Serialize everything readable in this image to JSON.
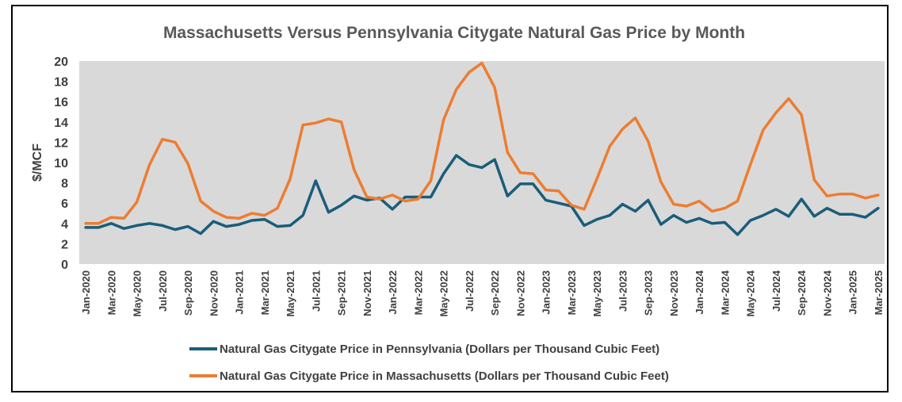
{
  "chart_data": {
    "type": "line",
    "title": "Massachusetts Versus Pennsylvania Citygate Natural Gas Price by Month",
    "xlabel": "",
    "ylabel": "$/MCF",
    "ylim": [
      0,
      20
    ],
    "yticks": [
      0,
      2,
      4,
      6,
      8,
      10,
      12,
      14,
      16,
      18,
      20
    ],
    "grid": false,
    "plot_background": "#d9d9d9",
    "legend_position": "bottom",
    "x": [
      "Jan-2020",
      "Feb-2020",
      "Mar-2020",
      "Apr-2020",
      "May-2020",
      "Jun-2020",
      "Jul-2020",
      "Aug-2020",
      "Sep-2020",
      "Oct-2020",
      "Nov-2020",
      "Dec-2020",
      "Jan-2021",
      "Feb-2021",
      "Mar-2021",
      "Apr-2021",
      "May-2021",
      "Jun-2021",
      "Jul-2021",
      "Aug-2021",
      "Sep-2021",
      "Oct-2021",
      "Nov-2021",
      "Dec-2021",
      "Jan-2022",
      "Feb-2022",
      "Mar-2022",
      "Apr-2022",
      "May-2022",
      "Jun-2022",
      "Jul-2022",
      "Aug-2022",
      "Sep-2022",
      "Oct-2022",
      "Nov-2022",
      "Dec-2022",
      "Jan-2023",
      "Feb-2023",
      "Mar-2023",
      "Apr-2023",
      "May-2023",
      "Jun-2023",
      "Jul-2023",
      "Aug-2023",
      "Sep-2023",
      "Oct-2023",
      "Nov-2023",
      "Dec-2023",
      "Jan-2024",
      "Feb-2024",
      "Mar-2024",
      "Apr-2024",
      "May-2024",
      "Jun-2024",
      "Jul-2024",
      "Aug-2024",
      "Sep-2024",
      "Oct-2024",
      "Nov-2024",
      "Dec-2024",
      "Jan-2025",
      "Feb-2025",
      "Mar-2025"
    ],
    "x_tick_labels": [
      "Jan-2020",
      "Mar-2020",
      "May-2020",
      "Jul-2020",
      "Sep-2020",
      "Nov-2020",
      "Jan-2021",
      "Mar-2021",
      "May-2021",
      "Jul-2021",
      "Sep-2021",
      "Nov-2021",
      "Jan-2022",
      "Mar-2022",
      "May-2022",
      "Jul-2022",
      "Sep-2022",
      "Nov-2022",
      "Jan-2023",
      "Mar-2023",
      "May-2023",
      "Jul-2023",
      "Sep-2023",
      "Nov-2023",
      "Jan-2024",
      "Mar-2024",
      "May-2024",
      "Jul-2024",
      "Sep-2024",
      "Nov-2024",
      "Jan-2025",
      "Mar-2025"
    ],
    "series": [
      {
        "name": "Natural Gas Citygate Price in Pennsylvania (Dollars per Thousand Cubic Feet)",
        "color": "#1a5d7a",
        "values": [
          3.6,
          3.6,
          4.0,
          3.5,
          3.8,
          4.0,
          3.8,
          3.4,
          3.7,
          3.0,
          4.2,
          3.7,
          3.9,
          4.3,
          4.4,
          3.7,
          3.8,
          4.8,
          8.2,
          5.1,
          5.8,
          6.7,
          6.3,
          6.5,
          5.4,
          6.6,
          6.6,
          6.6,
          8.9,
          10.7,
          9.8,
          9.5,
          10.3,
          6.7,
          7.9,
          7.9,
          6.3,
          6.0,
          5.7,
          3.8,
          4.4,
          4.8,
          5.9,
          5.2,
          6.3,
          3.9,
          4.8,
          4.1,
          4.5,
          4.0,
          4.1,
          2.9,
          4.3,
          4.8,
          5.4,
          4.7,
          6.4,
          4.7,
          5.5,
          4.9,
          4.9,
          4.6,
          5.5
        ]
      },
      {
        "name": "Natural Gas Citygate Price in Massachusetts (Dollars per Thousand Cubic Feet)",
        "color": "#ed7d31",
        "values": [
          4.0,
          4.0,
          4.6,
          4.5,
          6.1,
          9.8,
          12.3,
          12.0,
          9.9,
          6.2,
          5.2,
          4.6,
          4.5,
          5.0,
          4.8,
          5.5,
          8.4,
          13.7,
          13.9,
          14.3,
          14.0,
          9.3,
          6.6,
          6.4,
          6.8,
          6.2,
          6.4,
          8.2,
          14.2,
          17.2,
          18.9,
          19.8,
          17.4,
          11.0,
          9.0,
          8.9,
          7.3,
          7.2,
          5.8,
          5.4,
          8.4,
          11.6,
          13.3,
          14.4,
          12.1,
          8.1,
          5.9,
          5.7,
          6.2,
          5.2,
          5.5,
          6.2,
          9.8,
          13.2,
          14.9,
          16.3,
          14.7,
          8.3,
          6.7,
          6.9,
          6.9,
          6.5,
          6.8
        ]
      }
    ]
  }
}
